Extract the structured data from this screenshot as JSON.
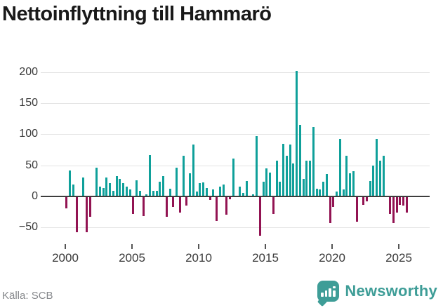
{
  "title": "Nettoinflyttning till Hammarö",
  "source": {
    "label": "Källa: SCB"
  },
  "branding": {
    "name": "Newsworthy",
    "logo_color": "#3e9d97",
    "logo_icon": "speech-bubble-bar-chart"
  },
  "colors": {
    "positive_bar": "#0fa09a",
    "negative_bar": "#921352",
    "gridline": "#e4e4e4",
    "zero_line": "#3d3d3d",
    "title_text": "#191919",
    "tick_text": "#3a3a3a",
    "source_text": "#85878b"
  },
  "chart_data": {
    "type": "bar",
    "title": "Nettoinflyttning till Hammarö",
    "x_unit": "quarter",
    "x_start": "2000-Q1",
    "x_end": "2025-Q3",
    "grid": true,
    "xticks": [
      2000,
      2005,
      2010,
      2015,
      2020,
      2025
    ],
    "yticks": [
      200,
      150,
      100,
      50,
      0,
      -50
    ],
    "ylim": [
      -75,
      215
    ],
    "values_by_year": [
      {
        "year": 2000,
        "values": [
          -19,
          42,
          19,
          -57
        ]
      },
      {
        "year": 2001,
        "values": [
          0,
          31,
          -58,
          -33
        ]
      },
      {
        "year": 2002,
        "values": [
          0,
          46,
          16,
          14
        ]
      },
      {
        "year": 2003,
        "values": [
          30,
          22,
          9,
          33
        ]
      },
      {
        "year": 2004,
        "values": [
          28,
          22,
          16,
          11
        ]
      },
      {
        "year": 2005,
        "values": [
          -28,
          26,
          9,
          -31
        ]
      },
      {
        "year": 2006,
        "values": [
          4,
          67,
          9,
          9
        ]
      },
      {
        "year": 2007,
        "values": [
          24,
          33,
          -33,
          12
        ]
      },
      {
        "year": 2008,
        "values": [
          -17,
          46,
          -26,
          65
        ]
      },
      {
        "year": 2009,
        "values": [
          -15,
          37,
          83,
          8
        ]
      },
      {
        "year": 2010,
        "values": [
          21,
          23,
          14,
          -6
        ]
      },
      {
        "year": 2011,
        "values": [
          11,
          -39,
          16,
          19
        ]
      },
      {
        "year": 2012,
        "values": [
          -29,
          -5,
          61,
          0
        ]
      },
      {
        "year": 2013,
        "values": [
          16,
          6,
          25,
          0
        ]
      },
      {
        "year": 2014,
        "values": [
          4,
          97,
          -63,
          24
        ]
      },
      {
        "year": 2015,
        "values": [
          45,
          38,
          -28,
          57
        ]
      },
      {
        "year": 2016,
        "values": [
          24,
          85,
          66,
          83
        ]
      },
      {
        "year": 2017,
        "values": [
          53,
          202,
          115,
          28
        ]
      },
      {
        "year": 2018,
        "values": [
          57,
          58,
          112,
          13
        ]
      },
      {
        "year": 2019,
        "values": [
          11,
          24,
          36,
          -43
        ]
      },
      {
        "year": 2020,
        "values": [
          -17,
          8,
          92,
          11
        ]
      },
      {
        "year": 2021,
        "values": [
          66,
          37,
          41,
          -41
        ]
      },
      {
        "year": 2022,
        "values": [
          0,
          -14,
          -8,
          25
        ]
      },
      {
        "year": 2023,
        "values": [
          50,
          93,
          58,
          65
        ]
      },
      {
        "year": 2024,
        "values": [
          0,
          -28,
          -43,
          -26
        ]
      },
      {
        "year": 2025,
        "values": [
          -13,
          -15,
          -26
        ]
      }
    ]
  }
}
